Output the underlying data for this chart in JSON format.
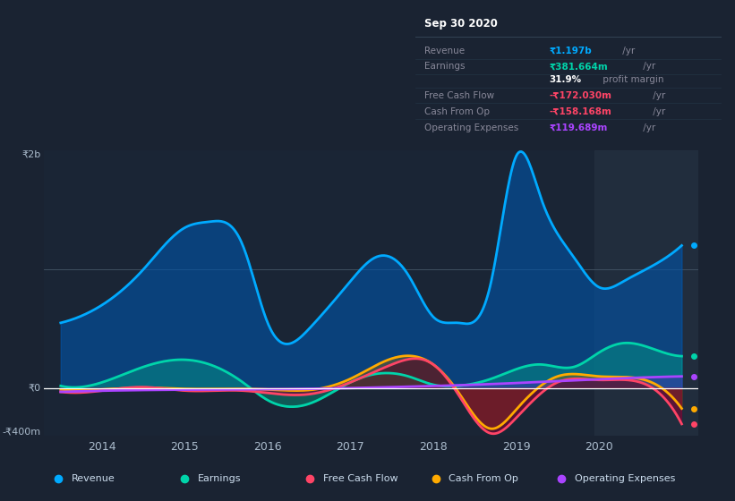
{
  "bg_color": "#1a2332",
  "plot_bg": "#1a2535",
  "y_min": -400,
  "y_max": 2000,
  "x_min": 2013.3,
  "x_max": 2021.2,
  "shaded_region_start": 2019.95,
  "revenue": {
    "x": [
      2013.5,
      2014.0,
      2014.5,
      2015.0,
      2015.3,
      2015.7,
      2016.0,
      2016.5,
      2017.0,
      2017.3,
      2017.7,
      2018.0,
      2018.3,
      2018.7,
      2019.0,
      2019.3,
      2019.7,
      2020.0,
      2020.3,
      2020.7,
      2021.0
    ],
    "y": [
      550,
      700,
      1000,
      1350,
      1400,
      1200,
      550,
      500,
      900,
      1100,
      950,
      600,
      550,
      900,
      1950,
      1600,
      1100,
      850,
      900,
      1050,
      1200
    ],
    "color": "#00aaff",
    "fill_color": "#0055aa",
    "fill_alpha": 0.6,
    "label": "Revenue",
    "lw": 2.0
  },
  "earnings": {
    "x": [
      2013.5,
      2014.0,
      2014.5,
      2015.0,
      2015.3,
      2015.7,
      2016.0,
      2016.5,
      2017.0,
      2017.3,
      2017.7,
      2018.0,
      2018.3,
      2018.7,
      2019.0,
      2019.3,
      2019.7,
      2020.0,
      2020.3,
      2020.7,
      2021.0
    ],
    "y": [
      20,
      50,
      180,
      240,
      200,
      50,
      -100,
      -130,
      50,
      120,
      100,
      30,
      20,
      80,
      160,
      200,
      180,
      300,
      380,
      320,
      270
    ],
    "color": "#00d4aa",
    "fill_color": "#00aa88",
    "fill_alpha": 0.4,
    "label": "Earnings",
    "lw": 2.0
  },
  "free_cash_flow": {
    "x": [
      2013.5,
      2014.0,
      2014.5,
      2015.0,
      2015.7,
      2016.0,
      2016.5,
      2017.0,
      2017.5,
      2018.0,
      2018.3,
      2018.7,
      2019.0,
      2019.5,
      2020.0,
      2020.5,
      2021.0
    ],
    "y": [
      -30,
      -20,
      10,
      -20,
      -20,
      -40,
      -50,
      50,
      200,
      200,
      -50,
      -380,
      -250,
      50,
      70,
      50,
      -300
    ],
    "color": "#ff4466",
    "fill_color_pos": "#550022",
    "fill_color_neg": "#880033",
    "fill_alpha": 0.55,
    "label": "Free Cash Flow",
    "lw": 2.0
  },
  "cash_from_op": {
    "x": [
      2013.5,
      2014.0,
      2014.5,
      2015.0,
      2015.5,
      2016.0,
      2016.5,
      2017.0,
      2017.5,
      2018.0,
      2018.3,
      2018.7,
      2019.0,
      2019.5,
      2020.0,
      2020.5,
      2021.0
    ],
    "y": [
      -10,
      -10,
      5,
      -5,
      -5,
      -10,
      -15,
      80,
      250,
      200,
      -30,
      -340,
      -180,
      100,
      100,
      80,
      -170
    ],
    "color": "#ffaa00",
    "fill_color": "#996600",
    "fill_alpha": 0.4,
    "label": "Cash From Op",
    "lw": 2.0
  },
  "operating_expenses": {
    "x": [
      2013.5,
      2014.5,
      2015.5,
      2016.5,
      2017.5,
      2018.5,
      2019.5,
      2020.5,
      2021.0
    ],
    "y": [
      -30,
      -15,
      -10,
      -5,
      10,
      30,
      60,
      90,
      100
    ],
    "color": "#aa44ff",
    "fill_color": "#6600cc",
    "fill_alpha": 0.3,
    "label": "Operating Expenses",
    "lw": 2.0
  },
  "info_box": {
    "title": "Sep 30 2020",
    "rows": [
      {
        "label": "Revenue",
        "value": "₹1.197b",
        "suffix": " /yr",
        "value_color": "#00aaff",
        "bold_value": true
      },
      {
        "label": "Earnings",
        "value": "₹381.664m",
        "suffix": " /yr",
        "value_color": "#00d4aa",
        "bold_value": true
      },
      {
        "label": "",
        "value": "31.9%",
        "suffix": " profit margin",
        "value_color": "#ffffff",
        "bold_value": true
      },
      {
        "label": "Free Cash Flow",
        "value": "-₹172.030m",
        "suffix": " /yr",
        "value_color": "#ff4466",
        "bold_value": true
      },
      {
        "label": "Cash From Op",
        "value": "-₹158.168m",
        "suffix": " /yr",
        "value_color": "#ff4466",
        "bold_value": true
      },
      {
        "label": "Operating Expenses",
        "value": "₹119.689m",
        "suffix": " /yr",
        "value_color": "#aa44ff",
        "bold_value": true
      }
    ]
  },
  "legend_items": [
    {
      "label": "Revenue",
      "color": "#00aaff"
    },
    {
      "label": "Earnings",
      "color": "#00d4aa"
    },
    {
      "label": "Free Cash Flow",
      "color": "#ff4466"
    },
    {
      "label": "Cash From Op",
      "color": "#ffaa00"
    },
    {
      "label": "Operating Expenses",
      "color": "#aa44ff"
    }
  ],
  "y_label_2b": "₹2b",
  "y_label_0": "₹0",
  "y_label_400m": "-₹400m",
  "x_ticks": [
    2014,
    2015,
    2016,
    2017,
    2018,
    2019,
    2020
  ],
  "x_tick_labels": [
    "2014",
    "2015",
    "2016",
    "2017",
    "2018",
    "2019",
    "2020"
  ]
}
